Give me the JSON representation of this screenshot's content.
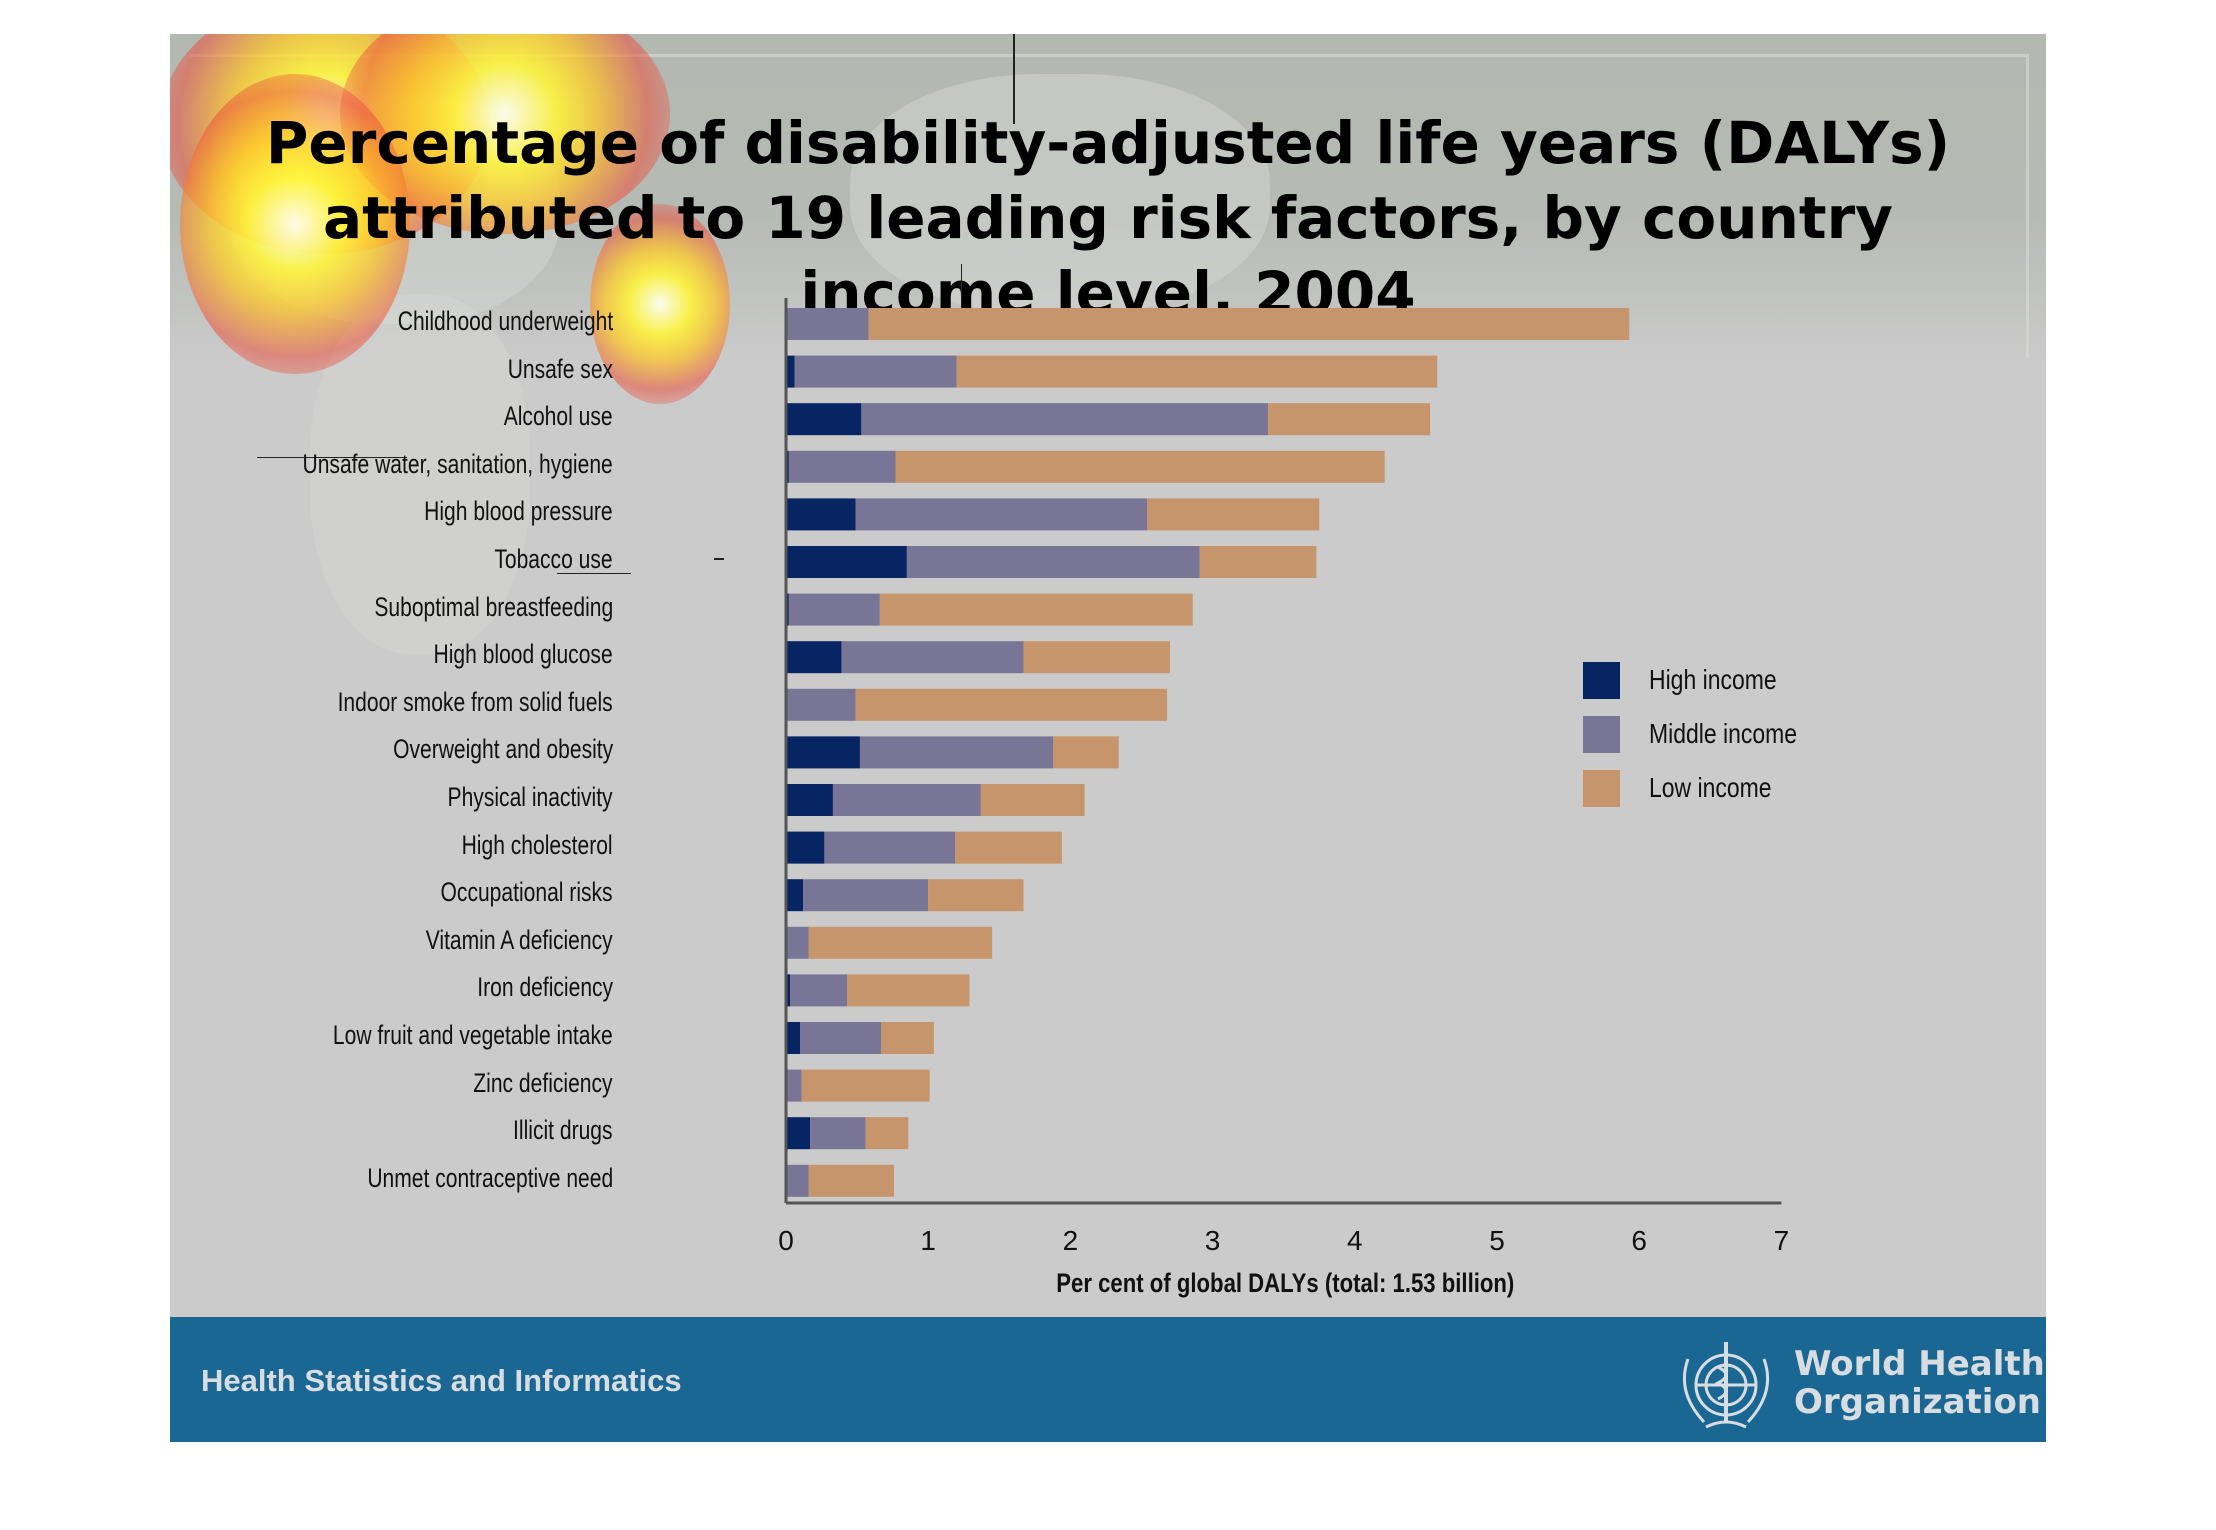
{
  "slide": {
    "title_lines": [
      "Percentage of disability-adjusted life years (DALYs)",
      "attributed to 19 leading risk factors, by country",
      "income level, 2004"
    ],
    "footer_text": "Health Statistics and Informatics",
    "logo_text": [
      "World Health",
      "Organization"
    ]
  },
  "chart_data": {
    "type": "bar",
    "orientation": "horizontal",
    "stacked": true,
    "title": "Percentage of disability-adjusted life years (DALYs) attributed to 19 leading risk factors, by country income level, 2004",
    "xlabel": "Per cent of global DALYs (total: 1.53 billion)",
    "ylabel": "",
    "xlim": [
      0,
      7
    ],
    "xticks": [
      "0",
      "1",
      "2",
      "3",
      "4",
      "5",
      "6",
      "7"
    ],
    "grid": false,
    "legend_position": "right",
    "categories": [
      "Childhood underweight",
      "Unsafe sex",
      "Alcohol use",
      "Unsafe water, sanitation, hygiene",
      "High blood pressure",
      "Tobacco use",
      "Suboptimal breastfeeding",
      "High blood glucose",
      "Indoor smoke from solid fuels",
      "Overweight and obesity",
      "Physical inactivity",
      "High cholesterol",
      "Occupational risks",
      "Vitamin A deficiency",
      "Iron deficiency",
      "Low fruit and vegetable intake",
      "Zinc deficiency",
      "Illicit drugs",
      "Unmet contraceptive need"
    ],
    "series": [
      {
        "name": "High income",
        "color": "#072463",
        "values": [
          0.0,
          0.06,
          0.53,
          0.02,
          0.49,
          0.85,
          0.02,
          0.39,
          0.0,
          0.52,
          0.33,
          0.27,
          0.12,
          0.0,
          0.03,
          0.1,
          0.0,
          0.17,
          0.0
        ]
      },
      {
        "name": "Middle income",
        "color": "#797596",
        "values": [
          0.58,
          1.14,
          2.86,
          0.75,
          2.05,
          2.06,
          0.64,
          1.28,
          0.49,
          1.36,
          1.04,
          0.92,
          0.88,
          0.16,
          0.4,
          0.57,
          0.11,
          0.39,
          0.16
        ]
      },
      {
        "name": "Low income",
        "color": "#c6956c",
        "values": [
          5.35,
          3.38,
          1.14,
          3.44,
          1.21,
          0.82,
          2.2,
          1.03,
          2.19,
          0.46,
          0.73,
          0.75,
          0.67,
          1.29,
          0.86,
          0.37,
          0.9,
          0.3,
          0.6
        ]
      }
    ]
  }
}
